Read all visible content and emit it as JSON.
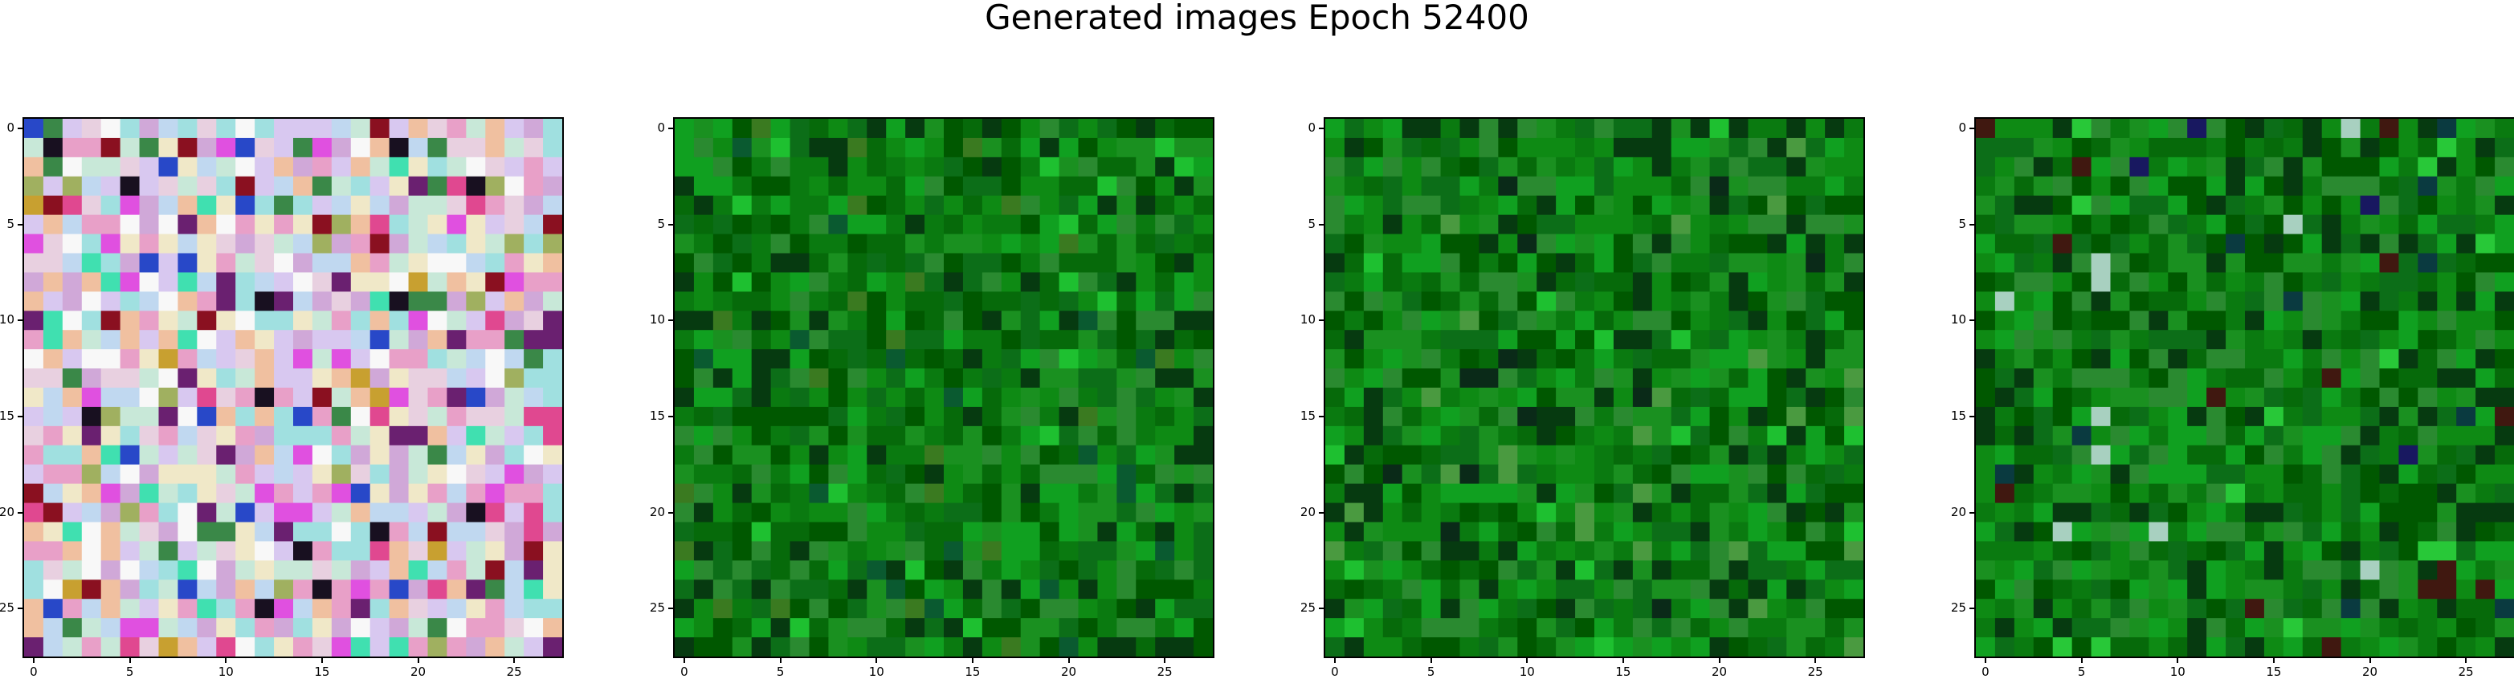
{
  "figure": {
    "title": "Generated images Epoch 52400"
  },
  "chart_data": [
    {
      "type": "heatmap",
      "panel": 1,
      "grid_size": [
        28,
        28
      ],
      "xticks": [
        "0",
        "5",
        "10",
        "15",
        "20",
        "25"
      ],
      "yticks": [
        "0",
        "5",
        "10",
        "15",
        "20",
        "25"
      ],
      "xlim": [
        -0.5,
        27.5
      ],
      "ylim": [
        27.5,
        -0.5
      ],
      "palette": "multicolor pastel noise",
      "colors": [
        "#e8d0e0",
        "#c8e8d8",
        "#f0e8c8",
        "#d8c8f0",
        "#f8f8f8",
        "#e8a0c8",
        "#a0e0e0",
        "#f0c0a0",
        "#c0d8f0",
        "#d0a8d8",
        "#3a8848",
        "#e04890",
        "#2848c8",
        "#40e0b0",
        "#8a1020",
        "#181020",
        "#c8a030",
        "#6a2070",
        "#e050e0",
        "#a0b060"
      ]
    },
    {
      "type": "heatmap",
      "panel": 2,
      "grid_size": [
        28,
        28
      ],
      "xticks": [
        "0",
        "5",
        "10",
        "15",
        "20",
        "25"
      ],
      "yticks": [
        "0",
        "5",
        "10",
        "15",
        "20",
        "25"
      ],
      "xlim": [
        -0.5,
        27.5
      ],
      "ylim": [
        27.5,
        -0.5
      ],
      "palette": "dark green noise",
      "colors": [
        "#0a7a10",
        "#0e8a14",
        "#066a0a",
        "#1a9020",
        "#005800",
        "#0c6e18",
        "#2a8a30",
        "#063a10",
        "#10a020",
        "#3a7a20",
        "#0a5a30",
        "#1ec030"
      ]
    },
    {
      "type": "heatmap",
      "panel": 3,
      "grid_size": [
        28,
        28
      ],
      "xticks": [
        "0",
        "5",
        "10",
        "15",
        "20",
        "25"
      ],
      "yticks": [
        "0",
        "5",
        "10",
        "15",
        "20",
        "25"
      ],
      "xlim": [
        -0.5,
        27.5
      ],
      "ylim": [
        27.5,
        -0.5
      ],
      "palette": "dark green noise",
      "colors": [
        "#0a7a10",
        "#0e8a14",
        "#066a0a",
        "#1a9020",
        "#005800",
        "#0c6e18",
        "#2a8a30",
        "#063a10",
        "#10a020",
        "#4a9a40",
        "#0a2a18",
        "#1ec030"
      ]
    },
    {
      "type": "heatmap",
      "panel": 4,
      "grid_size": [
        28,
        28
      ],
      "xticks": [
        "0",
        "5",
        "10",
        "15",
        "20",
        "25"
      ],
      "yticks": [
        "0",
        "5",
        "10",
        "15",
        "20",
        "25"
      ],
      "xlim": [
        -0.5,
        27.5
      ],
      "ylim": [
        27.5,
        -0.5
      ],
      "palette": "green noise with dark accents",
      "colors": [
        "#0a7a10",
        "#0e8a14",
        "#066a0a",
        "#1a9020",
        "#005800",
        "#0c6e18",
        "#2a8a30",
        "#063a10",
        "#10a020",
        "#181860",
        "#28c838",
        "#401810",
        "#0a3a40",
        "#a8d0c0"
      ]
    }
  ]
}
